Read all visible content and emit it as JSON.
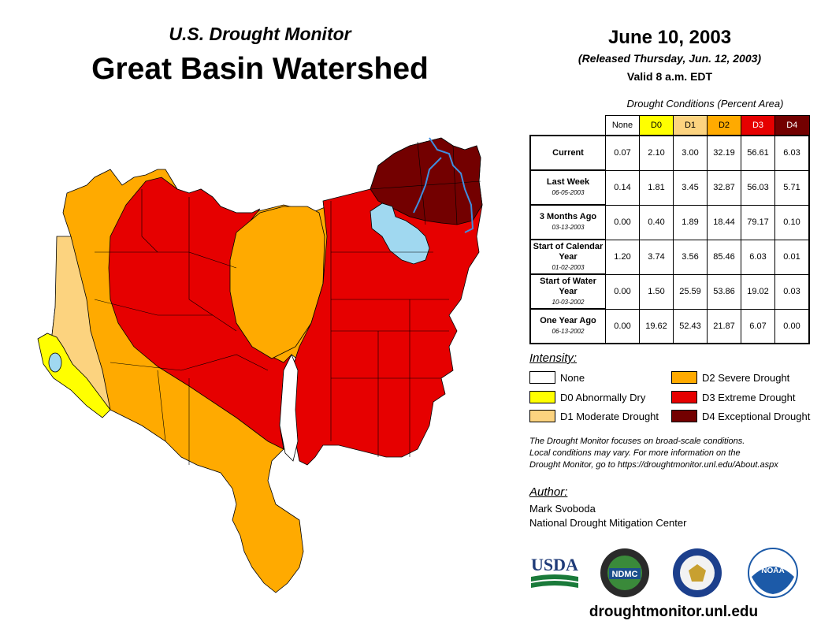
{
  "header": {
    "subtitle": "U.S. Drought Monitor",
    "title": "Great Basin Watershed",
    "date": "June 10, 2003",
    "released": "(Released Thursday, Jun. 12, 2003)",
    "valid": "Valid 8 a.m. EDT"
  },
  "table": {
    "caption": "Drought Conditions (Percent Area)",
    "columns": [
      {
        "label": "None",
        "color": "#ffffff"
      },
      {
        "label": "D0",
        "color": "#ffff00"
      },
      {
        "label": "D1",
        "color": "#fcd37f"
      },
      {
        "label": "D2",
        "color": "#ffaa00"
      },
      {
        "label": "D3",
        "color": "#e60000"
      },
      {
        "label": "D4",
        "color": "#730000"
      }
    ],
    "rows": [
      {
        "label": "Current",
        "date": "",
        "values": [
          "0.07",
          "2.10",
          "3.00",
          "32.19",
          "56.61",
          "6.03"
        ]
      },
      {
        "label": "Last Week",
        "date": "06-05-2003",
        "values": [
          "0.14",
          "1.81",
          "3.45",
          "32.87",
          "56.03",
          "5.71"
        ]
      },
      {
        "label": "3 Months Ago",
        "date": "03-13-2003",
        "values": [
          "0.00",
          "0.40",
          "1.89",
          "18.44",
          "79.17",
          "0.10"
        ]
      },
      {
        "label": "Start of Calendar Year",
        "date": "01-02-2003",
        "values": [
          "1.20",
          "3.74",
          "3.56",
          "85.46",
          "6.03",
          "0.01"
        ]
      },
      {
        "label": "Start of Water Year",
        "date": "10-03-2002",
        "values": [
          "0.00",
          "1.50",
          "25.59",
          "53.86",
          "19.02",
          "0.03"
        ]
      },
      {
        "label": "One Year Ago",
        "date": "06-13-2002",
        "values": [
          "0.00",
          "19.62",
          "52.43",
          "21.87",
          "6.07",
          "0.00"
        ]
      }
    ]
  },
  "legend": {
    "label": "Intensity:",
    "items": [
      {
        "label": "None",
        "color": "#ffffff"
      },
      {
        "label": "D0 Abnormally Dry",
        "color": "#ffff00"
      },
      {
        "label": "D1 Moderate Drought",
        "color": "#fcd37f"
      },
      {
        "label": "D2 Severe Drought",
        "color": "#ffaa00"
      },
      {
        "label": "D3 Extreme Drought",
        "color": "#e60000"
      },
      {
        "label": "D4 Exceptional Drought",
        "color": "#730000"
      }
    ]
  },
  "note": {
    "line1": "The Drought Monitor focuses on broad-scale conditions.",
    "line2": "Local conditions may vary. For more information on the",
    "line3": "Drought Monitor, go to https://droughtmonitor.unl.edu/About.aspx"
  },
  "author": {
    "label": "Author:",
    "name": "Mark Svoboda",
    "org": "National Drought Mitigation Center"
  },
  "logos": {
    "usda": "USDA",
    "ndmc": "NDMC",
    "noaa": "NOAA"
  },
  "url": "droughtmonitor.unl.edu",
  "icons": [
    "usda-logo",
    "ndmc-logo",
    "commerce-seal-logo",
    "noaa-logo"
  ]
}
